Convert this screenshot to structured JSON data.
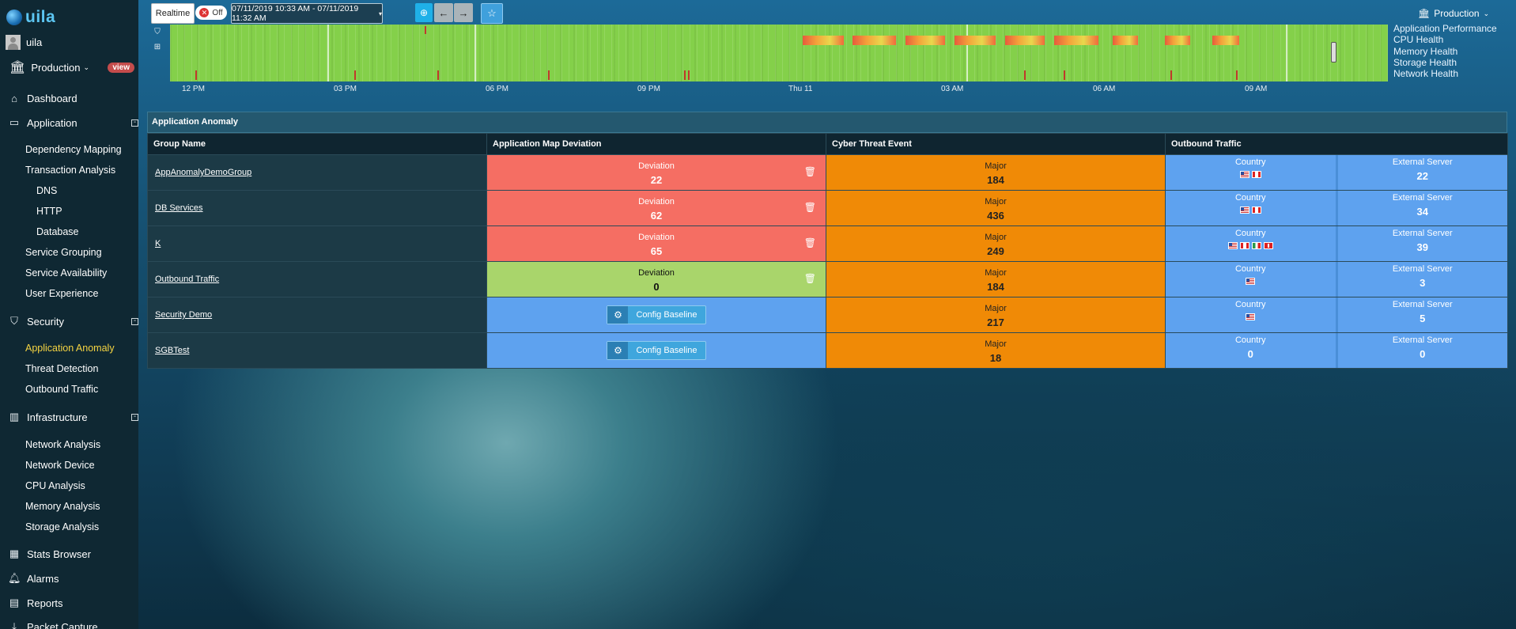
{
  "app": {
    "logo": "uila",
    "user": "uila",
    "environment": "Production",
    "view_badge": "view"
  },
  "sidebar": {
    "dashboard": "Dashboard",
    "application": "Application",
    "dependency_mapping": "Dependency Mapping",
    "transaction_analysis": "Transaction Analysis",
    "dns": "DNS",
    "http": "HTTP",
    "database": "Database",
    "service_grouping": "Service Grouping",
    "service_availability": "Service Availability",
    "user_experience": "User Experience",
    "security": "Security",
    "application_anomaly": "Application Anomaly",
    "threat_detection": "Threat Detection",
    "outbound_traffic": "Outbound Traffic",
    "infrastructure": "Infrastructure",
    "network_analysis": "Network Analysis",
    "network_device": "Network Device",
    "cpu_analysis": "CPU Analysis",
    "memory_analysis": "Memory Analysis",
    "storage_analysis": "Storage Analysis",
    "stats_browser": "Stats Browser",
    "alarms": "Alarms",
    "reports": "Reports",
    "packet_capture": "Packet Capture"
  },
  "toolbar": {
    "realtime": "Realtime",
    "toggle": "Off",
    "date_range": "07/11/2019 10:33 AM - 07/11/2019 11:32 AM",
    "environment": "Production"
  },
  "timeline": {
    "health_labels": [
      "Application Performance",
      "CPU Health",
      "Memory Health",
      "Storage Health",
      "Network Health"
    ],
    "ticks": [
      "12 PM",
      "03 PM",
      "06 PM",
      "09 PM",
      "Thu 11",
      "03 AM",
      "06 AM",
      "09 AM"
    ]
  },
  "panel": {
    "title": "Application Anomaly",
    "columns": [
      "Group Name",
      "Application Map Deviation",
      "Cyber Threat Event",
      "Outbound Traffic"
    ],
    "deviation_label": "Deviation",
    "threat_label": "Major",
    "country_label": "Country",
    "external_label": "External Server",
    "config_label": "Config Baseline",
    "rows": [
      {
        "group": "AppAnomalyDemoGroup",
        "deviation": "22",
        "threat": "184",
        "country_count": "",
        "external": "22"
      },
      {
        "group": "DB Services",
        "deviation": "62",
        "threat": "436",
        "country_count": "",
        "external": "34"
      },
      {
        "group": "K",
        "deviation": "65",
        "threat": "249",
        "country_count": "",
        "external": "39"
      },
      {
        "group": "Outbound Traffic",
        "deviation": "0",
        "threat": "184",
        "country_count": "",
        "external": "3"
      },
      {
        "group": "Security Demo",
        "deviation": "",
        "threat": "217",
        "country_count": "",
        "external": "5"
      },
      {
        "group": "SGBTest",
        "deviation": "",
        "threat": "18",
        "country_count": "0",
        "external": "0"
      }
    ]
  },
  "colors": {
    "deviation_red": "#f56e63",
    "deviation_green": "#a9d56b",
    "threat_orange": "#f08a06",
    "outbound_blue": "#5ea2ef",
    "active_nav": "#f5d442"
  }
}
